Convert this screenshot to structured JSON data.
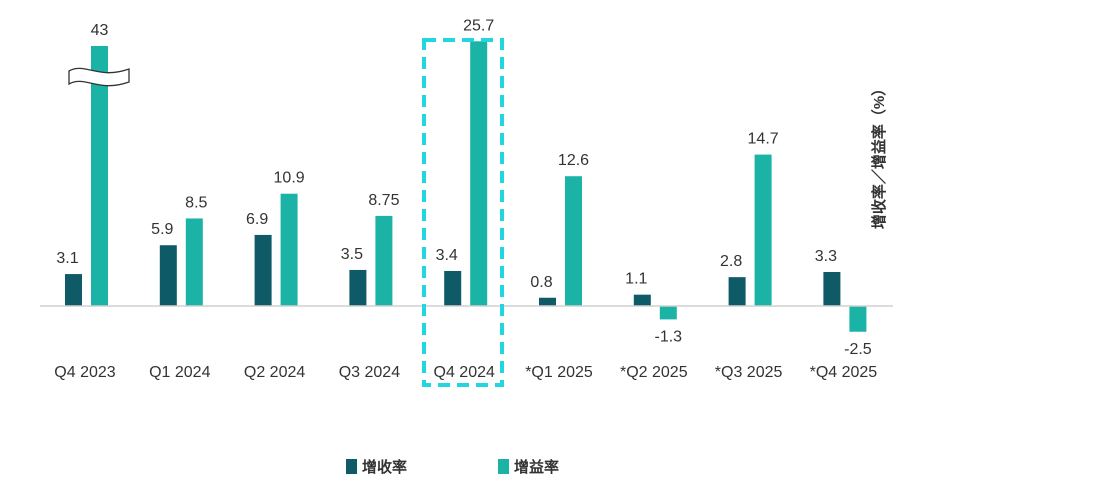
{
  "chart_data": {
    "type": "bar",
    "categories": [
      "Q4 2023",
      "Q1 2024",
      "Q2 2024",
      "Q3 2024",
      "Q4 2024",
      "*Q1 2025",
      "*Q2 2025",
      "*Q3 2025",
      "*Q4 2025"
    ],
    "series": [
      {
        "name": "增收率",
        "color": "#0e5a66",
        "values": [
          3.1,
          5.9,
          6.9,
          3.5,
          3.4,
          0.8,
          1.1,
          2.8,
          3.3
        ],
        "labels": [
          "3.1",
          "5.9",
          "6.9",
          "3.5",
          "3.4",
          "0.8",
          "1.1",
          "2.8",
          "3.3"
        ]
      },
      {
        "name": "增益率",
        "color": "#1ab3a6",
        "values": [
          43,
          8.5,
          10.9,
          8.75,
          25.7,
          12.6,
          -1.3,
          14.7,
          -2.5
        ],
        "labels": [
          "43",
          "8.5",
          "10.9",
          "8.75",
          "25.7",
          "12.6",
          "-1.3",
          "14.7",
          "-2.5"
        ]
      }
    ],
    "ylabel": "增收率／增益率（%）",
    "axis_break": {
      "series": "增益率",
      "category": "Q4 2023"
    },
    "highlight": {
      "category": "Q4 2024",
      "color": "#22d6df",
      "style": "dashed"
    },
    "legend_position": "bottom-center",
    "grid": false
  }
}
